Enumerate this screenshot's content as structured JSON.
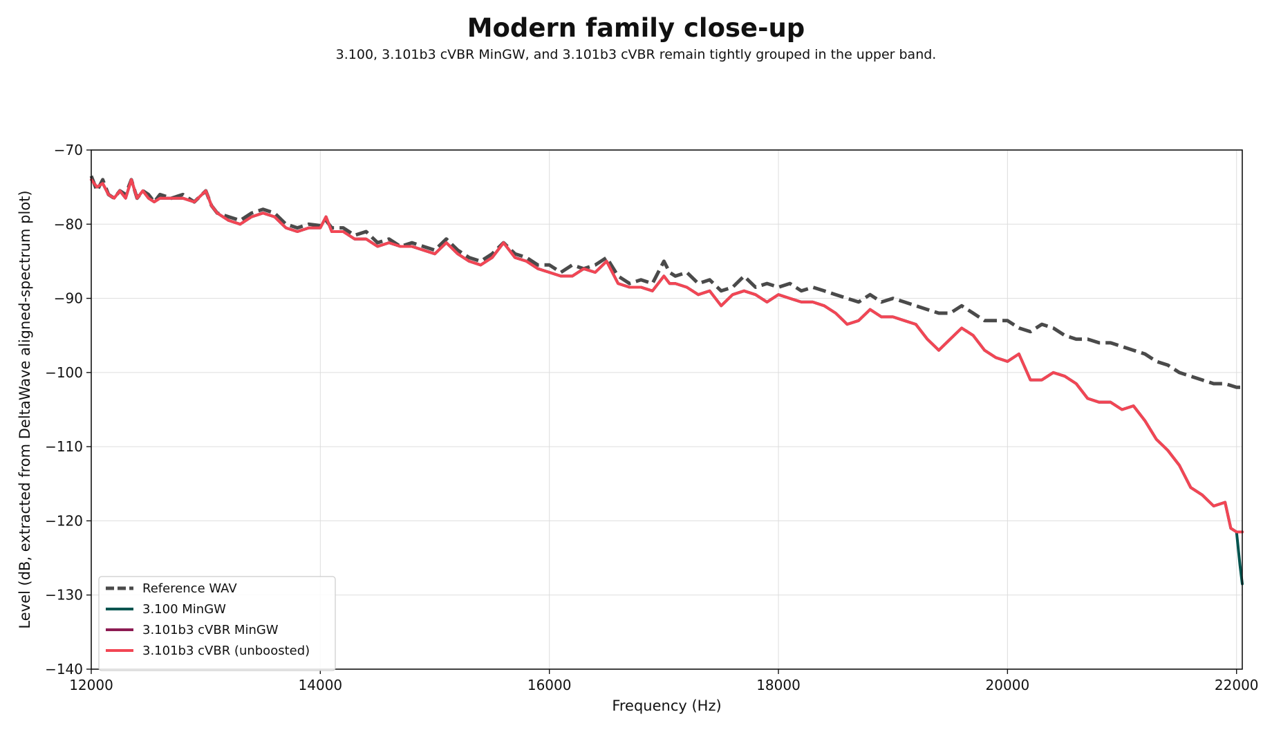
{
  "chart_data": {
    "type": "line",
    "title": "Modern family close-up",
    "subtitle": "3.100, 3.101b3 cVBR MinGW, and 3.101b3 cVBR remain tightly grouped in the upper band.",
    "xlabel": "Frequency (Hz)",
    "ylabel": "Level (dB, extracted from DeltaWave aligned-spectrum plot)",
    "xlim": [
      12000,
      22050
    ],
    "ylim": [
      -140,
      -70
    ],
    "xticks": [
      12000,
      14000,
      16000,
      18000,
      20000,
      22000
    ],
    "yticks": [
      -140,
      -130,
      -120,
      -110,
      -100,
      -90,
      -80,
      -70
    ],
    "xtick_labels": [
      "12000",
      "14000",
      "16000",
      "18000",
      "20000",
      "22000"
    ],
    "ytick_labels": [
      "−140",
      "−130",
      "−120",
      "−110",
      "−100",
      "−90",
      "−80",
      "−70"
    ],
    "grid": true,
    "legend_position": "lower-left",
    "series": [
      {
        "name": "Reference WAV",
        "color": "#4a4a4a",
        "style": "dashed",
        "x": [
          12000,
          12050,
          12100,
          12150,
          12200,
          12250,
          12300,
          12350,
          12400,
          12450,
          12500,
          12550,
          12600,
          12700,
          12800,
          12900,
          13000,
          13050,
          13100,
          13200,
          13300,
          13400,
          13500,
          13600,
          13700,
          13800,
          13900,
          14000,
          14050,
          14100,
          14200,
          14300,
          14400,
          14500,
          14600,
          14700,
          14800,
          14900,
          15000,
          15100,
          15200,
          15300,
          15400,
          15500,
          15600,
          15700,
          15800,
          15900,
          16000,
          16100,
          16200,
          16300,
          16400,
          16500,
          16600,
          16700,
          16800,
          16900,
          17000,
          17050,
          17100,
          17200,
          17300,
          17400,
          17500,
          17600,
          17700,
          17800,
          17900,
          18000,
          18100,
          18200,
          18300,
          18400,
          18500,
          18600,
          18700,
          18800,
          18900,
          19000,
          19100,
          19200,
          19300,
          19400,
          19500,
          19600,
          19700,
          19800,
          19900,
          20000,
          20100,
          20200,
          20300,
          20400,
          20500,
          20600,
          20700,
          20800,
          20900,
          21000,
          21100,
          21200,
          21300,
          21400,
          21500,
          21600,
          21700,
          21800,
          21900,
          22000,
          22050
        ],
        "y": [
          -73.5,
          -75.5,
          -74.0,
          -76.0,
          -76.5,
          -75.5,
          -76.0,
          -74.0,
          -76.5,
          -75.5,
          -76.0,
          -77.0,
          -76.0,
          -76.5,
          -76.0,
          -77.0,
          -75.5,
          -77.5,
          -78.5,
          -79.0,
          -79.5,
          -78.5,
          -78.0,
          -78.5,
          -80.0,
          -80.5,
          -80.0,
          -80.2,
          -79.5,
          -80.5,
          -80.5,
          -81.5,
          -81.0,
          -82.5,
          -82.0,
          -83.0,
          -82.5,
          -83.0,
          -83.5,
          -82.0,
          -83.5,
          -84.5,
          -85.0,
          -84.0,
          -82.5,
          -84.0,
          -84.5,
          -85.5,
          -85.5,
          -86.5,
          -85.5,
          -86.0,
          -85.5,
          -84.5,
          -87.0,
          -88.0,
          -87.5,
          -88.0,
          -85.0,
          -86.5,
          -87.0,
          -86.5,
          -88.0,
          -87.5,
          -89.0,
          -88.5,
          -87.0,
          -88.5,
          -88.0,
          -88.5,
          -88.0,
          -89.0,
          -88.5,
          -89.0,
          -89.5,
          -90.0,
          -90.5,
          -89.5,
          -90.5,
          -90.0,
          -90.5,
          -91.0,
          -91.5,
          -92.0,
          -92.0,
          -91.0,
          -92.0,
          -93.0,
          -93.0,
          -93.0,
          -94.0,
          -94.5,
          -93.5,
          -94.0,
          -95.0,
          -95.5,
          -95.5,
          -96.0,
          -96.0,
          -96.5,
          -97.0,
          -97.5,
          -98.5,
          -99.0,
          -100.0,
          -100.5,
          -101.0,
          -101.5,
          -101.5,
          -102.0,
          -102.0
        ]
      },
      {
        "name": "3.100 MinGW",
        "color": "#00544f",
        "style": "solid",
        "x": [
          12000,
          12050,
          12100,
          12150,
          12200,
          12250,
          12300,
          12350,
          12400,
          12450,
          12500,
          12550,
          12600,
          12700,
          12800,
          12900,
          13000,
          13050,
          13100,
          13200,
          13300,
          13400,
          13500,
          13600,
          13700,
          13800,
          13900,
          14000,
          14050,
          14100,
          14200,
          14300,
          14400,
          14500,
          14600,
          14700,
          14800,
          14900,
          15000,
          15100,
          15200,
          15300,
          15400,
          15500,
          15600,
          15700,
          15800,
          15900,
          16000,
          16100,
          16200,
          16300,
          16400,
          16500,
          16600,
          16700,
          16800,
          16900,
          17000,
          17050,
          17100,
          17200,
          17300,
          17400,
          17500,
          17600,
          17700,
          17800,
          17900,
          18000,
          18100,
          18200,
          18300,
          18400,
          18500,
          18600,
          18700,
          18800,
          18900,
          19000,
          19100,
          19200,
          19300,
          19400,
          19500,
          19600,
          19700,
          19800,
          19900,
          20000,
          20100,
          20200,
          20300,
          20400,
          20500,
          20600,
          20700,
          20800,
          20900,
          21000,
          21100,
          21200,
          21300,
          21400,
          21500,
          21600,
          21700,
          21800,
          21900,
          21950,
          22000,
          22030,
          22050
        ],
        "y": [
          -74.0,
          -75.0,
          -74.5,
          -76.0,
          -76.5,
          -75.5,
          -76.5,
          -74.0,
          -76.5,
          -75.5,
          -76.5,
          -77.0,
          -76.5,
          -76.5,
          -76.5,
          -77.0,
          -75.5,
          -77.5,
          -78.5,
          -79.5,
          -80.0,
          -79.0,
          -78.5,
          -79.0,
          -80.5,
          -81.0,
          -80.5,
          -80.5,
          -79.0,
          -81.0,
          -81.0,
          -82.0,
          -82.0,
          -83.0,
          -82.5,
          -83.0,
          -83.0,
          -83.5,
          -84.0,
          -82.5,
          -84.0,
          -85.0,
          -85.5,
          -84.5,
          -82.5,
          -84.5,
          -85.0,
          -86.0,
          -86.5,
          -87.0,
          -87.0,
          -86.0,
          -86.5,
          -85.0,
          -88.0,
          -88.5,
          -88.5,
          -89.0,
          -87.0,
          -88.0,
          -88.0,
          -88.5,
          -89.5,
          -89.0,
          -91.0,
          -89.5,
          -89.0,
          -89.5,
          -90.5,
          -89.5,
          -90.0,
          -90.5,
          -90.5,
          -91.0,
          -92.0,
          -93.5,
          -93.0,
          -91.5,
          -92.5,
          -92.5,
          -93.0,
          -93.5,
          -95.5,
          -97.0,
          -95.5,
          -94.0,
          -95.0,
          -97.0,
          -98.0,
          -98.5,
          -97.5,
          -101.0,
          -101.0,
          -100.0,
          -100.5,
          -101.5,
          -103.5,
          -104.0,
          -104.0,
          -105.0,
          -104.5,
          -106.5,
          -109.0,
          -110.5,
          -112.5,
          -115.5,
          -116.5,
          -118.0,
          -117.5,
          -121.0,
          -121.5,
          -126.0,
          -128.5
        ]
      },
      {
        "name": "3.101b3 cVBR MinGW",
        "color": "#8c1b53",
        "style": "solid",
        "x": [
          12000,
          12050,
          12100,
          12150,
          12200,
          12250,
          12300,
          12350,
          12400,
          12450,
          12500,
          12550,
          12600,
          12700,
          12800,
          12900,
          13000,
          13050,
          13100,
          13200,
          13300,
          13400,
          13500,
          13600,
          13700,
          13800,
          13900,
          14000,
          14050,
          14100,
          14200,
          14300,
          14400,
          14500,
          14600,
          14700,
          14800,
          14900,
          15000,
          15100,
          15200,
          15300,
          15400,
          15500,
          15600,
          15700,
          15800,
          15900,
          16000,
          16100,
          16200,
          16300,
          16400,
          16500,
          16600,
          16700,
          16800,
          16900,
          17000,
          17050,
          17100,
          17200,
          17300,
          17400,
          17500,
          17600,
          17700,
          17800,
          17900,
          18000,
          18100,
          18200,
          18300,
          18400,
          18500,
          18600,
          18700,
          18800,
          18900,
          19000,
          19100,
          19200,
          19300,
          19400,
          19500,
          19600,
          19700,
          19800,
          19900,
          20000,
          20100,
          20200,
          20300,
          20400,
          20500,
          20600,
          20700,
          20800,
          20900,
          21000,
          21100,
          21200,
          21300,
          21400,
          21500,
          21600,
          21700,
          21800,
          21900,
          21950,
          22000,
          22050
        ],
        "y": [
          -74.0,
          -75.0,
          -74.5,
          -76.0,
          -76.5,
          -75.5,
          -76.5,
          -74.0,
          -76.5,
          -75.5,
          -76.5,
          -77.0,
          -76.5,
          -76.5,
          -76.5,
          -77.0,
          -75.5,
          -77.5,
          -78.5,
          -79.5,
          -80.0,
          -79.0,
          -78.5,
          -79.0,
          -80.5,
          -81.0,
          -80.5,
          -80.5,
          -79.0,
          -81.0,
          -81.0,
          -82.0,
          -82.0,
          -83.0,
          -82.5,
          -83.0,
          -83.0,
          -83.5,
          -84.0,
          -82.5,
          -84.0,
          -85.0,
          -85.5,
          -84.5,
          -82.5,
          -84.5,
          -85.0,
          -86.0,
          -86.5,
          -87.0,
          -87.0,
          -86.0,
          -86.5,
          -85.0,
          -88.0,
          -88.5,
          -88.5,
          -89.0,
          -87.0,
          -88.0,
          -88.0,
          -88.5,
          -89.5,
          -89.0,
          -91.0,
          -89.5,
          -89.0,
          -89.5,
          -90.5,
          -89.5,
          -90.0,
          -90.5,
          -90.5,
          -91.0,
          -92.0,
          -93.5,
          -93.0,
          -91.5,
          -92.5,
          -92.5,
          -93.0,
          -93.5,
          -95.5,
          -97.0,
          -95.5,
          -94.0,
          -95.0,
          -97.0,
          -98.0,
          -98.5,
          -97.5,
          -101.0,
          -101.0,
          -100.0,
          -100.5,
          -101.5,
          -103.5,
          -104.0,
          -104.0,
          -105.0,
          -104.5,
          -106.5,
          -109.0,
          -110.5,
          -112.5,
          -115.5,
          -116.5,
          -118.0,
          -117.5,
          -121.0,
          -121.5,
          -121.5
        ]
      },
      {
        "name": "3.101b3 cVBR (unboosted)",
        "color": "#f24654",
        "style": "solid",
        "x": [
          12000,
          12050,
          12100,
          12150,
          12200,
          12250,
          12300,
          12350,
          12400,
          12450,
          12500,
          12550,
          12600,
          12700,
          12800,
          12900,
          13000,
          13050,
          13100,
          13200,
          13300,
          13400,
          13500,
          13600,
          13700,
          13800,
          13900,
          14000,
          14050,
          14100,
          14200,
          14300,
          14400,
          14500,
          14600,
          14700,
          14800,
          14900,
          15000,
          15100,
          15200,
          15300,
          15400,
          15500,
          15600,
          15700,
          15800,
          15900,
          16000,
          16100,
          16200,
          16300,
          16400,
          16500,
          16600,
          16700,
          16800,
          16900,
          17000,
          17050,
          17100,
          17200,
          17300,
          17400,
          17500,
          17600,
          17700,
          17800,
          17900,
          18000,
          18100,
          18200,
          18300,
          18400,
          18500,
          18600,
          18700,
          18800,
          18900,
          19000,
          19100,
          19200,
          19300,
          19400,
          19500,
          19600,
          19700,
          19800,
          19900,
          20000,
          20100,
          20200,
          20300,
          20400,
          20500,
          20600,
          20700,
          20800,
          20900,
          21000,
          21100,
          21200,
          21300,
          21400,
          21500,
          21600,
          21700,
          21800,
          21900,
          21950,
          22000,
          22050
        ],
        "y": [
          -74.0,
          -75.0,
          -74.5,
          -76.0,
          -76.5,
          -75.5,
          -76.5,
          -74.0,
          -76.5,
          -75.5,
          -76.5,
          -77.0,
          -76.5,
          -76.5,
          -76.5,
          -77.0,
          -75.5,
          -77.5,
          -78.5,
          -79.5,
          -80.0,
          -79.0,
          -78.5,
          -79.0,
          -80.5,
          -81.0,
          -80.5,
          -80.5,
          -79.0,
          -81.0,
          -81.0,
          -82.0,
          -82.0,
          -83.0,
          -82.5,
          -83.0,
          -83.0,
          -83.5,
          -84.0,
          -82.5,
          -84.0,
          -85.0,
          -85.5,
          -84.5,
          -82.5,
          -84.5,
          -85.0,
          -86.0,
          -86.5,
          -87.0,
          -87.0,
          -86.0,
          -86.5,
          -85.0,
          -88.0,
          -88.5,
          -88.5,
          -89.0,
          -87.0,
          -88.0,
          -88.0,
          -88.5,
          -89.5,
          -89.0,
          -91.0,
          -89.5,
          -89.0,
          -89.5,
          -90.5,
          -89.5,
          -90.0,
          -90.5,
          -90.5,
          -91.0,
          -92.0,
          -93.5,
          -93.0,
          -91.5,
          -92.5,
          -92.5,
          -93.0,
          -93.5,
          -95.5,
          -97.0,
          -95.5,
          -94.0,
          -95.0,
          -97.0,
          -98.0,
          -98.5,
          -97.5,
          -101.0,
          -101.0,
          -100.0,
          -100.5,
          -101.5,
          -103.5,
          -104.0,
          -104.0,
          -105.0,
          -104.5,
          -106.5,
          -109.0,
          -110.5,
          -112.5,
          -115.5,
          -116.5,
          -118.0,
          -117.5,
          -121.0,
          -121.5,
          -121.5
        ]
      }
    ]
  }
}
